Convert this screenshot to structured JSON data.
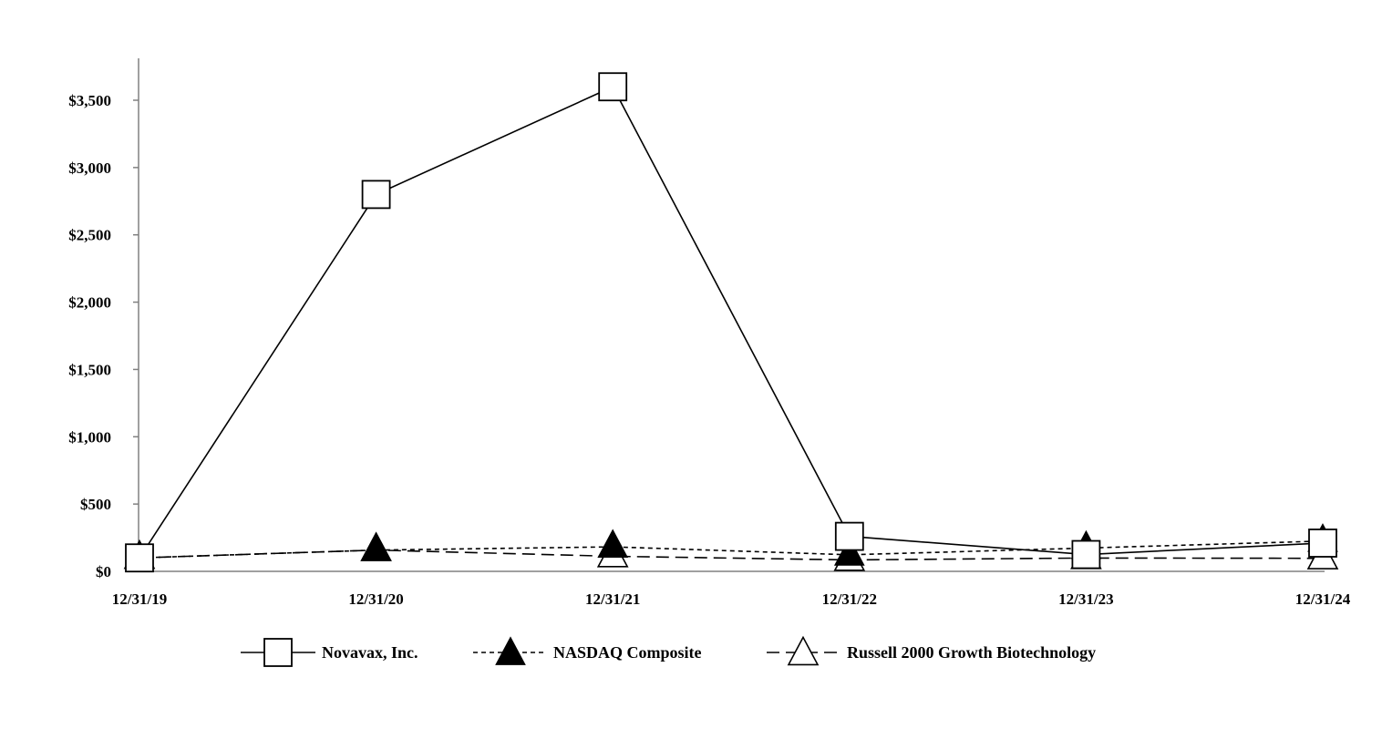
{
  "chart_data": {
    "type": "line",
    "title": "",
    "xlabel": "",
    "ylabel": "",
    "categories": [
      "12/31/19",
      "12/31/20",
      "12/31/21",
      "12/31/22",
      "12/31/23",
      "12/31/24"
    ],
    "ylim": [
      0,
      3800
    ],
    "y_ticks": [
      0,
      500,
      1000,
      1500,
      2000,
      2500,
      3000,
      3500
    ],
    "y_tick_labels": [
      "$0",
      "$500",
      "$1,000",
      "$1,500",
      "$2,000",
      "$2,500",
      "$3,000",
      "$3,500"
    ],
    "grid": false,
    "legend_position": "bottom",
    "series": [
      {
        "name": "Novavax, Inc.",
        "values": [
          100,
          2800,
          3600,
          260,
          125,
          210
        ],
        "line_style": "solid",
        "marker": "open-square",
        "color": "#000000"
      },
      {
        "name": "NASDAQ Composite",
        "values": [
          100,
          158,
          182,
          123,
          173,
          225
        ],
        "line_style": "short-dash",
        "marker": "filled-triangle",
        "color": "#000000"
      },
      {
        "name": "Russell 2000 Growth Biotechnology",
        "values": [
          100,
          158,
          112,
          85,
          99,
          97
        ],
        "line_style": "long-dash",
        "marker": "open-triangle",
        "color": "#000000"
      }
    ]
  }
}
